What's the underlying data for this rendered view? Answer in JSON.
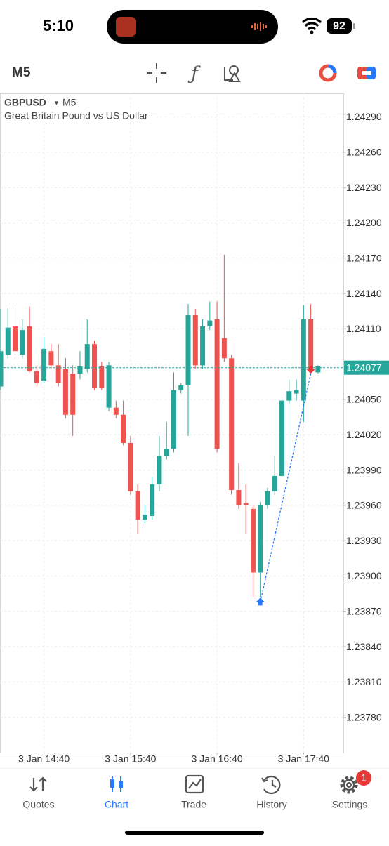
{
  "status_bar": {
    "time": "5:10",
    "battery": 92
  },
  "toolbar": {
    "timeframe": "M5"
  },
  "chart_data": {
    "type": "candlestick",
    "symbol": "GBPUSD",
    "timeframe": "M5",
    "description": "Great Britain Pound vs US Dollar",
    "up_color": "#26a69a",
    "down_color": "#ef5350",
    "categories": [
      null,
      null,
      null,
      null,
      null,
      null,
      "3 Jan 14:40",
      null,
      null,
      null,
      null,
      null,
      null,
      null,
      null,
      null,
      null,
      null,
      "3 Jan 15:40",
      null,
      null,
      null,
      null,
      null,
      null,
      null,
      null,
      null,
      null,
      null,
      "3 Jan 16:40",
      null,
      null,
      null,
      null,
      null,
      null,
      null,
      null,
      null,
      null,
      null,
      "3 Jan 17:40",
      null,
      null
    ],
    "open": [
      1.24061,
      1.24088,
      1.24112,
      1.24088,
      1.24112,
      1.24074,
      1.24066,
      1.24091,
      1.24079,
      1.24076,
      1.24072,
      1.24072,
      1.24076,
      1.24097,
      1.24078,
      1.24043,
      1.24043,
      1.24037,
      1.24013,
      1.23972,
      1.23948,
      1.23951,
      1.23978,
      1.24002,
      1.24008,
      1.24058,
      1.24062,
      1.24122,
      1.24079,
      1.24112,
      1.24118,
      1.24102,
      1.24085,
      1.23973,
      1.23962,
      1.23957,
      1.23903,
      1.2396,
      1.23972,
      1.23985,
      1.24049,
      1.24055,
      1.24049,
      1.24118,
      1.24073
    ],
    "high": [
      1.24127,
      1.24128,
      1.24128,
      1.24118,
      1.24129,
      1.24079,
      1.24103,
      1.24097,
      1.24097,
      1.24085,
      1.24079,
      1.24091,
      1.24118,
      1.241,
      1.24082,
      1.24082,
      1.24049,
      1.24049,
      1.24019,
      1.23978,
      1.2396,
      1.23984,
      1.24019,
      1.24031,
      1.24073,
      1.24064,
      1.24131,
      1.24127,
      1.24118,
      1.24133,
      1.24133,
      1.24173,
      1.24088,
      1.23996,
      1.23978,
      1.2396,
      1.23963,
      1.23975,
      1.24002,
      1.24055,
      1.24067,
      1.24067,
      1.2413,
      1.24131,
      1.24079
    ],
    "low": [
      1.24058,
      1.24085,
      1.24085,
      1.24085,
      1.24073,
      1.24061,
      1.24064,
      1.24076,
      1.24061,
      1.24034,
      1.24019,
      1.24067,
      1.24073,
      1.24058,
      1.24058,
      1.2404,
      1.24034,
      1.24011,
      1.23969,
      1.23936,
      1.23945,
      1.23948,
      1.23972,
      1.23999,
      1.24005,
      1.24055,
      1.24019,
      1.24076,
      1.24076,
      1.24109,
      1.24005,
      1.24082,
      1.23969,
      1.23957,
      1.23936,
      1.23882,
      1.23882,
      1.23957,
      1.23969,
      1.23984,
      1.24046,
      1.24049,
      1.24031,
      1.24074,
      1.24072
    ],
    "close": [
      1.24091,
      1.24111,
      1.24091,
      1.24109,
      1.24074,
      1.24064,
      1.24093,
      1.24079,
      1.24064,
      1.24037,
      1.24037,
      1.24078,
      1.24097,
      1.2406,
      1.2406,
      1.24079,
      1.24037,
      1.24013,
      1.23972,
      1.23948,
      1.23952,
      1.23978,
      1.24002,
      1.24008,
      1.24058,
      1.24062,
      1.24122,
      1.24079,
      1.24112,
      1.24117,
      1.24008,
      1.24085,
      1.23973,
      1.2396,
      1.2396,
      1.23903,
      1.2396,
      1.23972,
      1.23985,
      1.24049,
      1.24057,
      1.24058,
      1.24118,
      1.24076,
      1.24078
    ],
    "current_price": 1.24077,
    "trade_line": {
      "entry_index": 36,
      "entry_price": 1.23878,
      "exit_index": 43,
      "exit_price": 1.24072
    },
    "ylim": [
      1.2375,
      1.2431
    ],
    "yticks": [
      {
        "value": 1.2429,
        "label": "1.24290"
      },
      {
        "value": 1.2426,
        "label": "1.24260"
      },
      {
        "value": 1.2423,
        "label": "1.24230"
      },
      {
        "value": 1.242,
        "label": "1.24200"
      },
      {
        "value": 1.2417,
        "label": "1.24170"
      },
      {
        "value": 1.2414,
        "label": "1.24140"
      },
      {
        "value": 1.2411,
        "label": "1.24110"
      },
      {
        "value": 1.2408,
        "label": "1.24080"
      },
      {
        "value": 1.2405,
        "label": "1.24050"
      },
      {
        "value": 1.2402,
        "label": "1.24020"
      },
      {
        "value": 1.2399,
        "label": "1.23990"
      },
      {
        "value": 1.2396,
        "label": "1.23960"
      },
      {
        "value": 1.2393,
        "label": "1.23930"
      },
      {
        "value": 1.239,
        "label": "1.23900"
      },
      {
        "value": 1.2387,
        "label": "1.23870"
      },
      {
        "value": 1.2384,
        "label": "1.23840"
      },
      {
        "value": 1.2381,
        "label": "1.23810"
      },
      {
        "value": 1.2378,
        "label": "1.23780"
      }
    ],
    "grid": true
  },
  "tab_bar": {
    "tabs": [
      "Quotes",
      "Chart",
      "Trade",
      "History",
      "Settings"
    ],
    "active": 1,
    "badge": 1
  }
}
